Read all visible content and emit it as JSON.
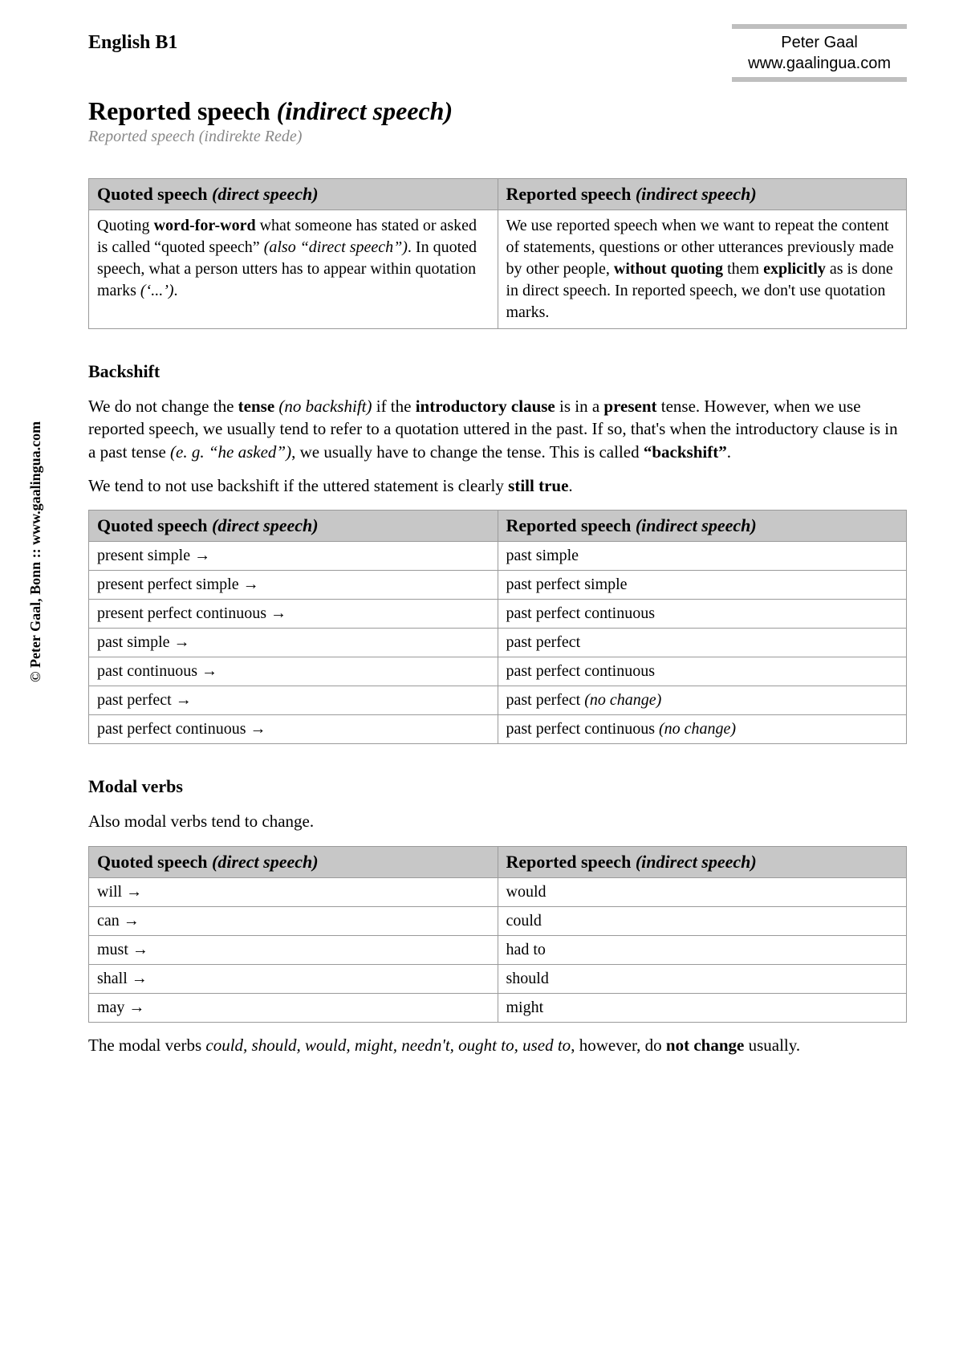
{
  "header": {
    "level": "English B1",
    "author_name": "Peter Gaal",
    "author_url": "www.gaalingua.com"
  },
  "title": {
    "main": "Reported speech",
    "paren": "(indirect speech)",
    "subtitle": "Reported speech (indirekte Rede)"
  },
  "defn_table": {
    "head_left_main": "Quoted speech",
    "head_left_paren": "(direct speech)",
    "head_right_main": "Reported speech",
    "head_right_paren": "(indirect speech)",
    "left_html": "Quoting <b>word-for-word</b> what someone has stated or asked is called “quoted speech” <i>(also “direct speech”)</i>. In quoted speech, what a person utters has to appear within quotation marks <i>(‘...’)</i>.",
    "right_html": "We use reported speech when we want to repeat the content of statements, questions or other utterances previously made by other people, <b>without quoting</b> them <b>explicitly</b> as is done in direct speech. In reported speech, we don't use quotation marks."
  },
  "backshift": {
    "heading": "Backshift",
    "para1_html": "We do not change the <b>tense</b> <i>(no backshift)</i> if the <b>introductory clause</b> is in a <b>present</b> tense. However, when we use reported speech, we usually tend to refer to a quotation uttered in the past. If so, that's when the introductory clause is in a past tense <i>(e. g. “he asked”)</i>, we usually have to change the tense. This is called <b>“backshift”</b>.",
    "para2_html": "We tend to not use backshift if the uttered statement is clearly <b>still true</b>.",
    "table": {
      "head_left_main": "Quoted speech",
      "head_left_paren": "(direct speech)",
      "head_right_main": "Reported speech",
      "head_right_paren": "(indirect speech)",
      "rows": [
        {
          "left": "present simple →",
          "right": "past simple"
        },
        {
          "left": "present perfect simple →",
          "right": "past perfect simple"
        },
        {
          "left": "present perfect continuous →",
          "right": "past perfect continuous"
        },
        {
          "left": "past simple →",
          "right": "past perfect"
        },
        {
          "left": "past continuous →",
          "right": "past perfect continuous"
        },
        {
          "left": "past perfect →",
          "right_html": "past perfect <i>(no change)</i>"
        },
        {
          "left": "past perfect continuous →",
          "right_html": "past perfect continuous <i>(no change)</i>"
        }
      ]
    }
  },
  "modal": {
    "heading": "Modal verbs",
    "intro": "Also modal verbs tend to change.",
    "table": {
      "head_left_main": "Quoted speech",
      "head_left_paren": "(direct speech)",
      "head_right_main": "Reported speech",
      "head_right_paren": "(indirect speech)",
      "rows": [
        {
          "left": "will →",
          "right": "would"
        },
        {
          "left": "can →",
          "right": "could"
        },
        {
          "left": "must →",
          "right": "had to"
        },
        {
          "left": "shall →",
          "right": "should"
        },
        {
          "left": "may →",
          "right": "might"
        }
      ]
    },
    "footer_html": "The modal verbs <i>could, should, would, might, needn't, ought to, used to</i>, however, do <b>not change</b> usually."
  },
  "side_copyright": "© Peter Gaal, Bonn :: www.gaalingua.com"
}
